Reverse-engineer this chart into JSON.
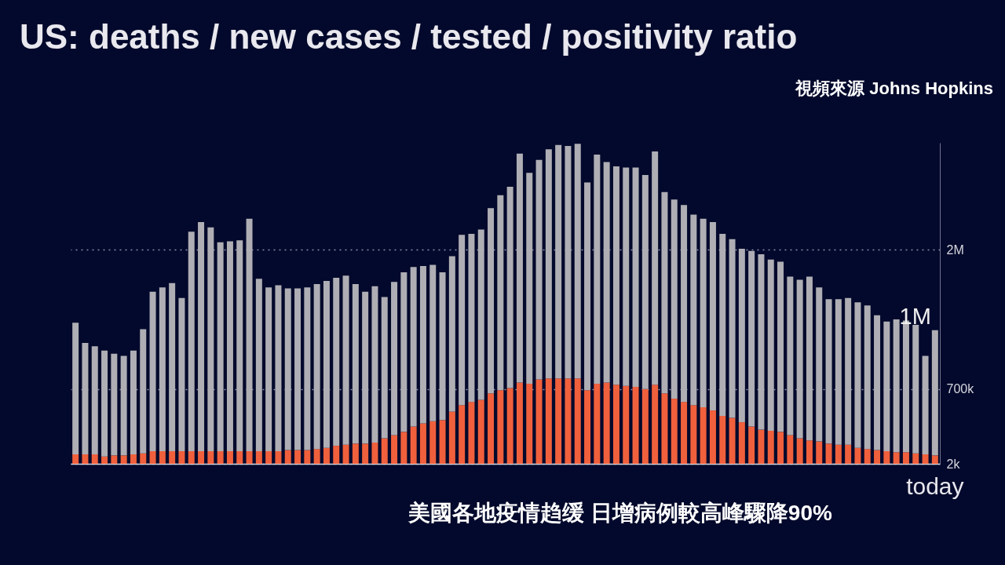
{
  "chart_data": {
    "type": "bar",
    "title": "US: deaths / new cases / tested / positivity ratio",
    "categories": [
      null,
      null,
      null,
      null,
      null,
      null,
      null,
      null,
      null,
      null,
      null,
      null,
      null,
      null,
      null,
      null,
      null,
      null,
      null,
      null,
      null,
      null,
      null,
      null,
      null,
      null,
      null,
      null,
      null,
      null,
      null,
      null,
      null,
      null,
      null,
      null,
      null,
      null,
      null,
      null,
      null,
      null,
      null,
      null,
      null,
      null,
      null,
      null,
      null,
      null,
      null,
      null,
      null,
      null,
      null,
      null,
      null,
      null,
      null,
      null,
      null,
      null,
      null,
      null,
      null,
      null,
      null,
      null,
      null,
      null,
      null,
      null,
      null,
      null,
      null,
      null,
      null,
      null,
      null,
      null,
      null,
      null,
      null,
      null,
      null,
      null,
      null,
      null,
      null,
      "today"
    ],
    "stacked": true,
    "series": [
      {
        "color": "#f0603c",
        "values": [
          90000,
          90000,
          90000,
          70000,
          80000,
          80000,
          90000,
          100000,
          120000,
          120000,
          120000,
          120000,
          120000,
          120000,
          120000,
          120000,
          120000,
          120000,
          120000,
          120000,
          120000,
          120000,
          130000,
          130000,
          130000,
          140000,
          150000,
          170000,
          180000,
          190000,
          190000,
          200000,
          240000,
          270000,
          300000,
          350000,
          380000,
          400000,
          410000,
          490000,
          550000,
          580000,
          600000,
          660000,
          690000,
          710000,
          760000,
          750000,
          790000,
          800000,
          800000,
          800000,
          800000,
          690000,
          750000,
          760000,
          740000,
          730000,
          720000,
          700000,
          740000,
          660000,
          610000,
          580000,
          550000,
          530000,
          500000,
          450000,
          430000,
          390000,
          350000,
          320000,
          310000,
          300000,
          270000,
          240000,
          220000,
          210000,
          190000,
          180000,
          180000,
          150000,
          140000,
          130000,
          120000,
          110000,
          110000,
          100000,
          90000,
          80000
        ]
      },
      {
        "color": "#aeaeb4",
        "values": [
          1230000,
          1040000,
          1010000,
          990000,
          950000,
          930000,
          970000,
          1160000,
          1490000,
          1530000,
          1570000,
          1430000,
          2050000,
          2140000,
          2090000,
          1950000,
          1960000,
          1970000,
          2170000,
          1610000,
          1530000,
          1550000,
          1510000,
          1510000,
          1520000,
          1540000,
          1560000,
          1570000,
          1580000,
          1490000,
          1420000,
          1460000,
          1320000,
          1430000,
          1490000,
          1490000,
          1470000,
          1460000,
          1380000,
          1450000,
          1590000,
          1570000,
          1590000,
          1730000,
          1820000,
          1880000,
          2140000,
          1970000,
          2050000,
          2140000,
          2180000,
          2170000,
          2190000,
          1940000,
          2140000,
          2060000,
          2040000,
          2040000,
          2050000,
          2000000,
          2180000,
          1880000,
          1860000,
          1840000,
          1780000,
          1760000,
          1760000,
          1700000,
          1670000,
          1620000,
          1640000,
          1640000,
          1600000,
          1590000,
          1480000,
          1480000,
          1530000,
          1440000,
          1350000,
          1360000,
          1370000,
          1360000,
          1340000,
          1260000,
          1210000,
          1240000,
          1230000,
          1200000,
          920000,
          1170000
        ]
      }
    ],
    "ylim": [
      2000,
      3000000
    ],
    "yticks": [
      {
        "value": 2000,
        "label": "2k"
      },
      {
        "value": 700000,
        "label": "700k"
      },
      {
        "value": 2000000,
        "label": "2M"
      }
    ],
    "grid": "y",
    "annotations": [
      {
        "text": "1M",
        "x": "today",
        "y": 1250000
      },
      "視頻來源 Johns Hopkins",
      "美國各地疫情趋缓 日增病例較高峰驟降90%"
    ]
  }
}
